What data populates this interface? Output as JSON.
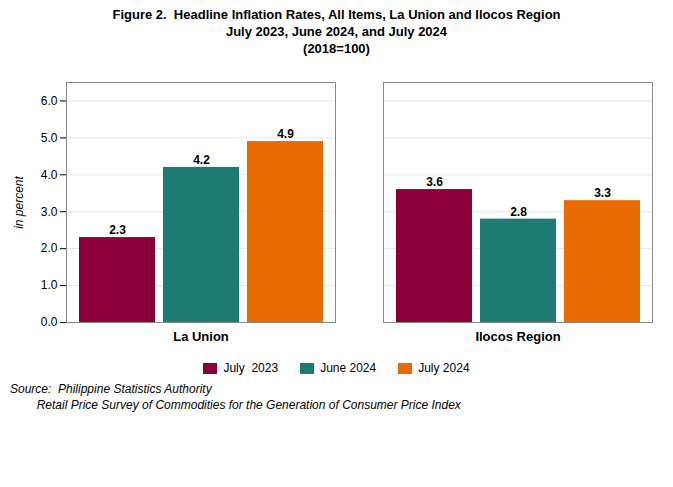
{
  "chart_data": {
    "type": "bar",
    "title": "Figure 2.  Headline Inflation Rates, All Items, La Union and Ilocos Region",
    "subtitle": [
      "July 2023, June 2024, and July 2024",
      "(2018=100)"
    ],
    "categories": [
      "La Union",
      "Ilocos Region"
    ],
    "series": [
      {
        "name": "July  2023",
        "color": "#8B0038",
        "values": [
          2.3,
          3.6
        ]
      },
      {
        "name": "June 2024",
        "color": "#1E7B74",
        "values": [
          4.2,
          2.8
        ]
      },
      {
        "name": "July 2024",
        "color": "#E86A00",
        "values": [
          4.9,
          3.3
        ]
      }
    ],
    "ylabel": "in percent",
    "ylim": [
      0,
      6.5
    ],
    "yticks": [
      {
        "value": 0,
        "label": "0.0"
      },
      {
        "value": 1,
        "label": "1.0"
      },
      {
        "value": 2,
        "label": "2.0"
      },
      {
        "value": 3,
        "label": "3.0"
      },
      {
        "value": 4,
        "label": "4.0"
      },
      {
        "value": 5,
        "label": "5.0"
      },
      {
        "value": 6,
        "label": "6.0"
      }
    ],
    "grid": true,
    "data_labels": true,
    "legend": "bottom",
    "annotations": [
      "Source:  Philippine Statistics Authority",
      "        Retail Price Survey of Commodities for the Generation of Consumer Price Index"
    ]
  }
}
